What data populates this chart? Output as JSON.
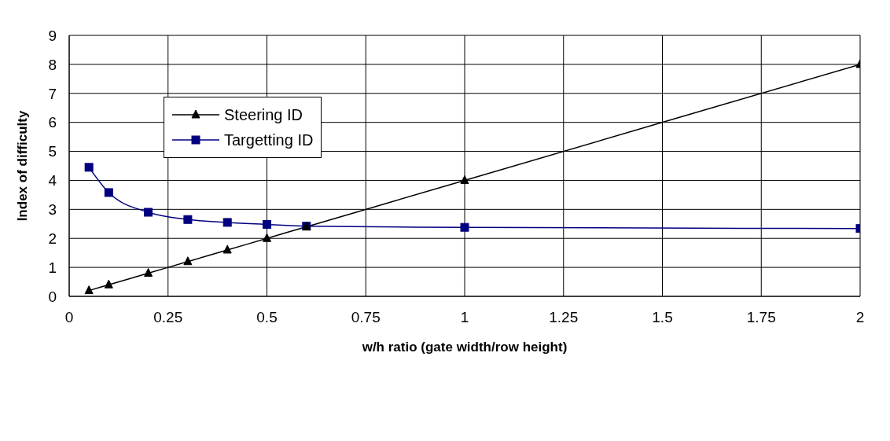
{
  "chart_data": {
    "type": "line",
    "xlabel": "w/h ratio (gate width/row height)",
    "ylabel": "Index of difficulty",
    "x": [
      0.05,
      0.1,
      0.2,
      0.3,
      0.4,
      0.5,
      0.6,
      1,
      2
    ],
    "series": [
      {
        "name": "Steering ID",
        "color": "#000000",
        "marker": "triangle",
        "values": [
          0.2,
          0.4,
          0.8,
          1.2,
          1.6,
          2,
          2.4,
          4,
          8
        ]
      },
      {
        "name": "Targetting ID",
        "color": "#000080",
        "marker": "square",
        "values": [
          4.45,
          3.58,
          2.9,
          2.65,
          2.55,
          2.48,
          2.42,
          2.38,
          2.34
        ]
      }
    ],
    "xlim": [
      0,
      2
    ],
    "xticks": [
      0,
      0.25,
      0.5,
      0.75,
      1,
      1.25,
      1.5,
      1.75,
      2
    ],
    "ylim": [
      0,
      9
    ],
    "yticks": [
      0,
      1,
      2,
      3,
      4,
      5,
      6,
      7,
      8,
      9
    ],
    "grid": true,
    "legend": "top left",
    "line_style": "solid"
  }
}
